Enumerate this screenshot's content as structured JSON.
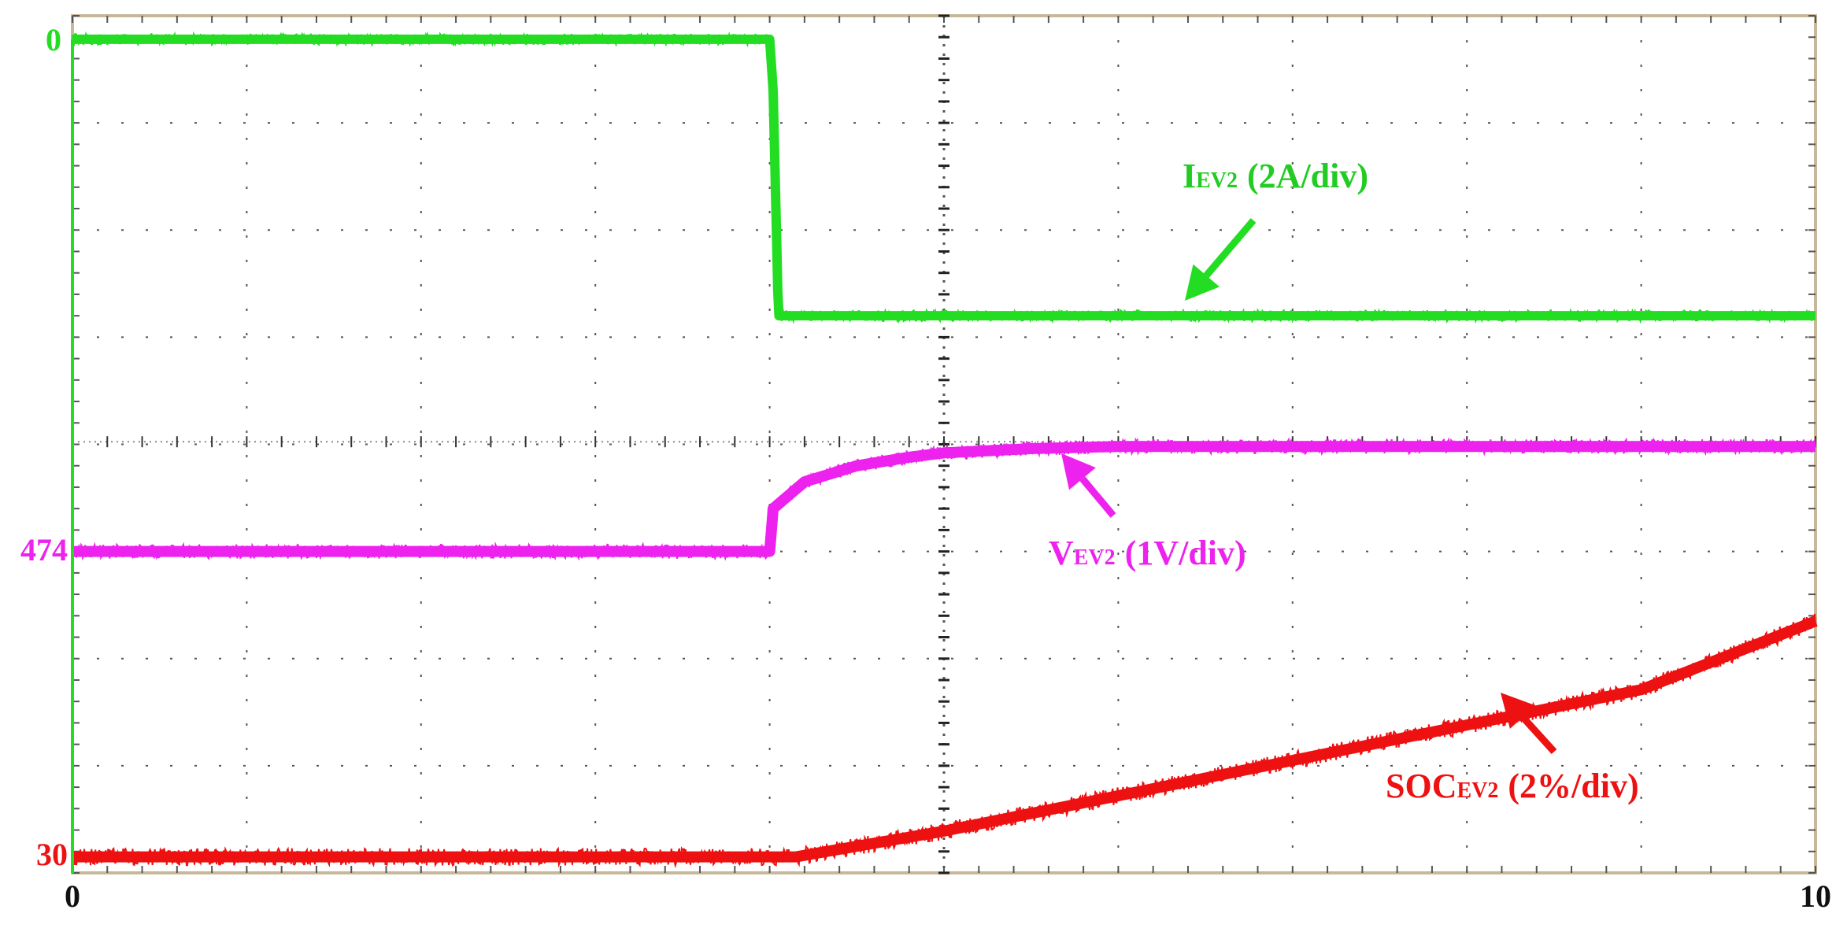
{
  "chart_data": {
    "type": "line",
    "title": "",
    "xlabel": "",
    "ylabel": "",
    "x_tick_labels": {
      "start": "0",
      "end": "10"
    },
    "xlim": [
      0,
      10
    ],
    "divisions": {
      "x": 10,
      "y": 8
    },
    "grid": true,
    "colors": {
      "current": "#22dd22",
      "voltage": "#ee22ee",
      "soc": "#ee1111",
      "frame": "#c8b89a",
      "grid": "#555555",
      "refline": "#888888"
    },
    "series": [
      {
        "key": "current",
        "name_main": "I",
        "name_sub": "EV2",
        "name_scale": "(2A/div)",
        "color": "#22dd22",
        "ref_label": "0",
        "unit_per_div": "2A",
        "x": [
          0,
          4.0,
          4.02,
          4.05,
          10
        ],
        "y_div": [
          7.78,
          7.78,
          7.3,
          5.2,
          5.2
        ]
      },
      {
        "key": "voltage",
        "name_main": "V",
        "name_sub": "EV2",
        "name_scale": "(1V/div)",
        "color": "#ee22ee",
        "ref_label": "474",
        "unit_per_div": "1V",
        "x": [
          0,
          4.0,
          4.02,
          4.2,
          4.5,
          4.8,
          5.0,
          5.5,
          6.0,
          10
        ],
        "y_div": [
          3.0,
          3.0,
          3.4,
          3.65,
          3.8,
          3.88,
          3.92,
          3.96,
          3.98,
          3.98
        ]
      },
      {
        "key": "soc",
        "name_main": "SOC",
        "name_sub": "EV2",
        "name_scale": "(2%/div)",
        "color": "#ee1111",
        "ref_label": "30",
        "unit_per_div": "2%",
        "x": [
          0,
          4.15,
          5.0,
          6.0,
          7.0,
          8.0,
          9.0,
          10
        ],
        "y_div": [
          0.15,
          0.15,
          0.39,
          0.72,
          1.05,
          1.38,
          1.71,
          2.35
        ]
      }
    ]
  }
}
